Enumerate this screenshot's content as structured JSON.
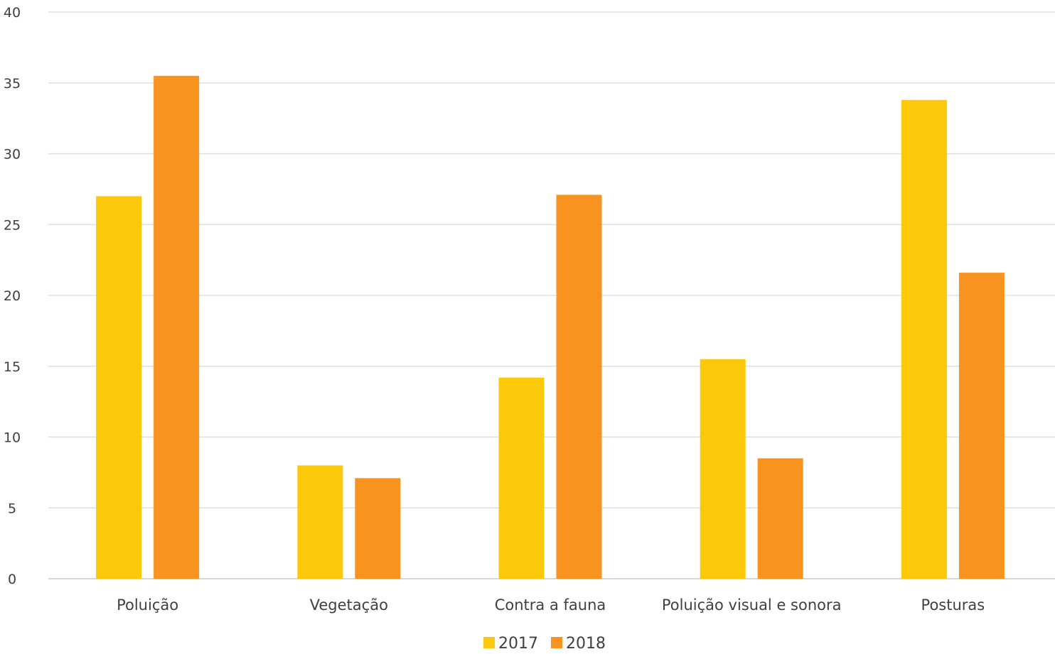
{
  "chart_data": {
    "type": "bar",
    "title": "",
    "xlabel": "",
    "ylabel": "",
    "categories": [
      "Poluição",
      "Vegetação",
      "Contra a fauna",
      "Poluição visual e sonora",
      "Posturas"
    ],
    "series": [
      {
        "name": "2017",
        "color": "#FCC80A",
        "values": [
          27,
          8,
          14.2,
          15.5,
          33.8
        ]
      },
      {
        "name": "2018",
        "color": "#F7931E",
        "values": [
          35.5,
          7.1,
          27.1,
          8.5,
          21.6
        ]
      }
    ],
    "ylim": [
      0,
      40
    ],
    "yticks": [
      0,
      5,
      10,
      15,
      20,
      25,
      30,
      35,
      40
    ],
    "grid": true,
    "legend": "bottom-center"
  }
}
